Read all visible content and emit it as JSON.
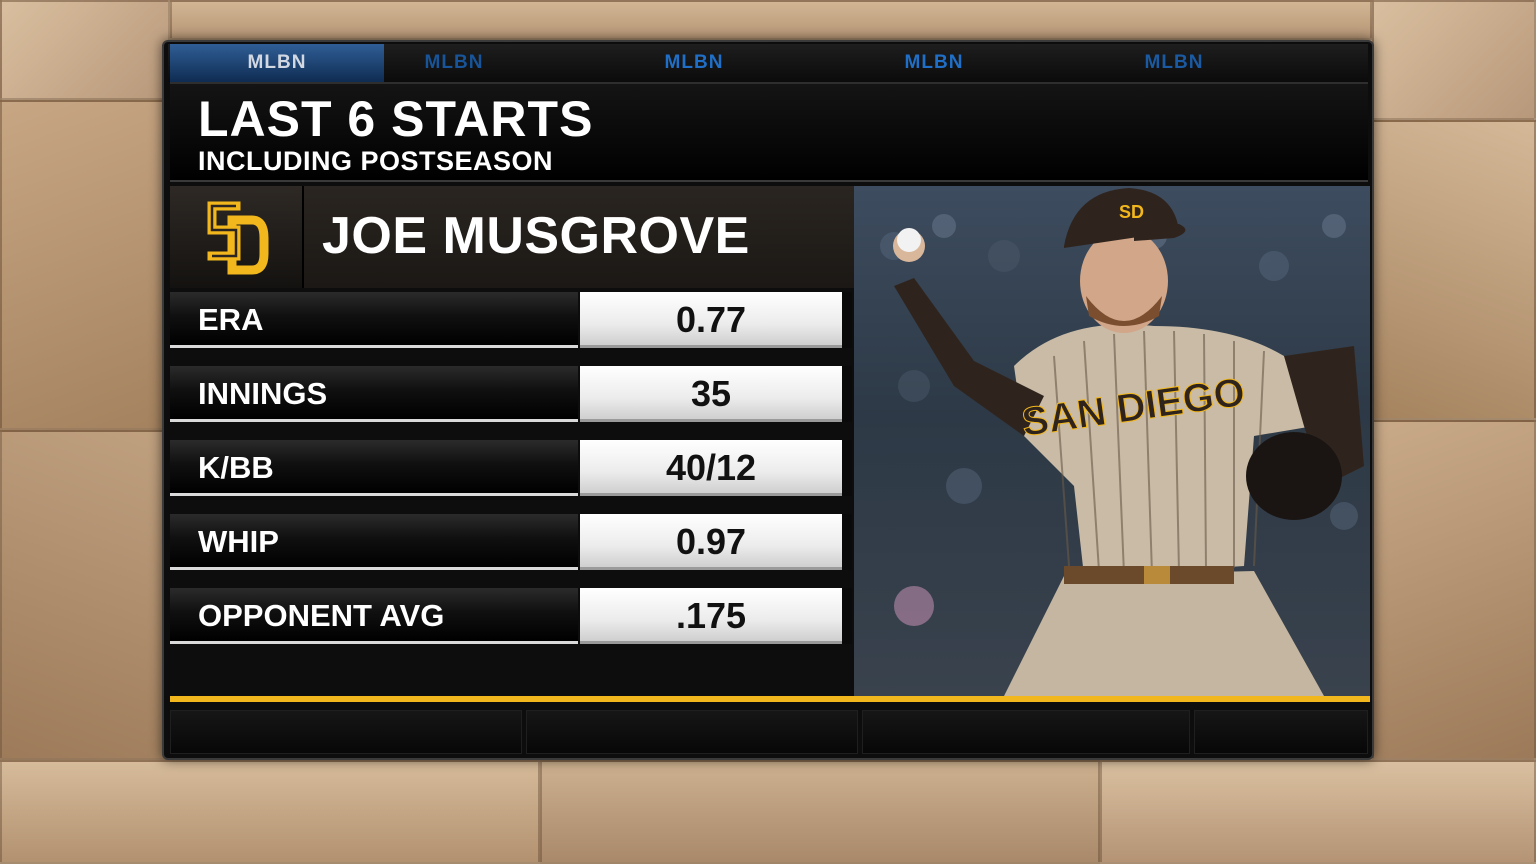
{
  "network_tabs": [
    "MLBN",
    "MLBN",
    "MLBN",
    "MLBN",
    "MLBN"
  ],
  "header": {
    "title": "LAST 6 STARTS",
    "subtitle": "INCLUDING POSTSEASON"
  },
  "player": {
    "name": "JOE MUSGROVE",
    "team_logo": "SD",
    "jersey_text": "SAN DIEGO"
  },
  "stats": [
    {
      "label": "ERA",
      "value": "0.77"
    },
    {
      "label": "INNINGS",
      "value": "35"
    },
    {
      "label": "K/BB",
      "value": "40/12"
    },
    {
      "label": "WHIP",
      "value": "0.97"
    },
    {
      "label": "OPPONENT AVG",
      "value": ".175"
    }
  ],
  "colors": {
    "accent_gold": "#f2b71c",
    "team_brown": "#2f241d",
    "network_blue": "#1f6fc8"
  }
}
